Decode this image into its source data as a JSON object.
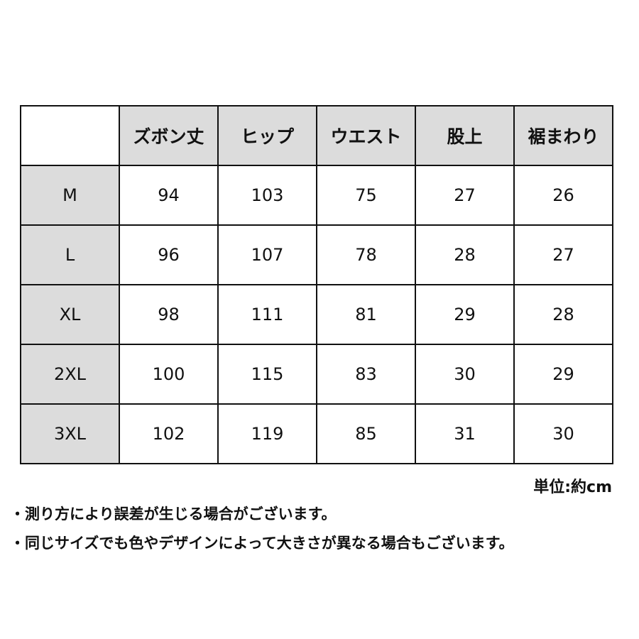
{
  "table": {
    "header": [
      "ズボン丈",
      "ヒップ",
      "ウエスト",
      "股上",
      "裾まわり"
    ],
    "rows": [
      [
        "M",
        94,
        103,
        75,
        27,
        26
      ],
      [
        "L",
        96,
        107,
        78,
        28,
        27
      ],
      [
        "XL",
        98,
        111,
        81,
        29,
        28
      ],
      [
        "2XL",
        100,
        115,
        83,
        30,
        29
      ],
      [
        "3XL",
        102,
        119,
        85,
        31,
        30
      ]
    ]
  },
  "unit": "単位:約cm",
  "notes": [
    "・測り方により誤差が生じる場合がございます。",
    "・同じサイズでも色やデザインによって大きさが異なる場合もございます。"
  ]
}
